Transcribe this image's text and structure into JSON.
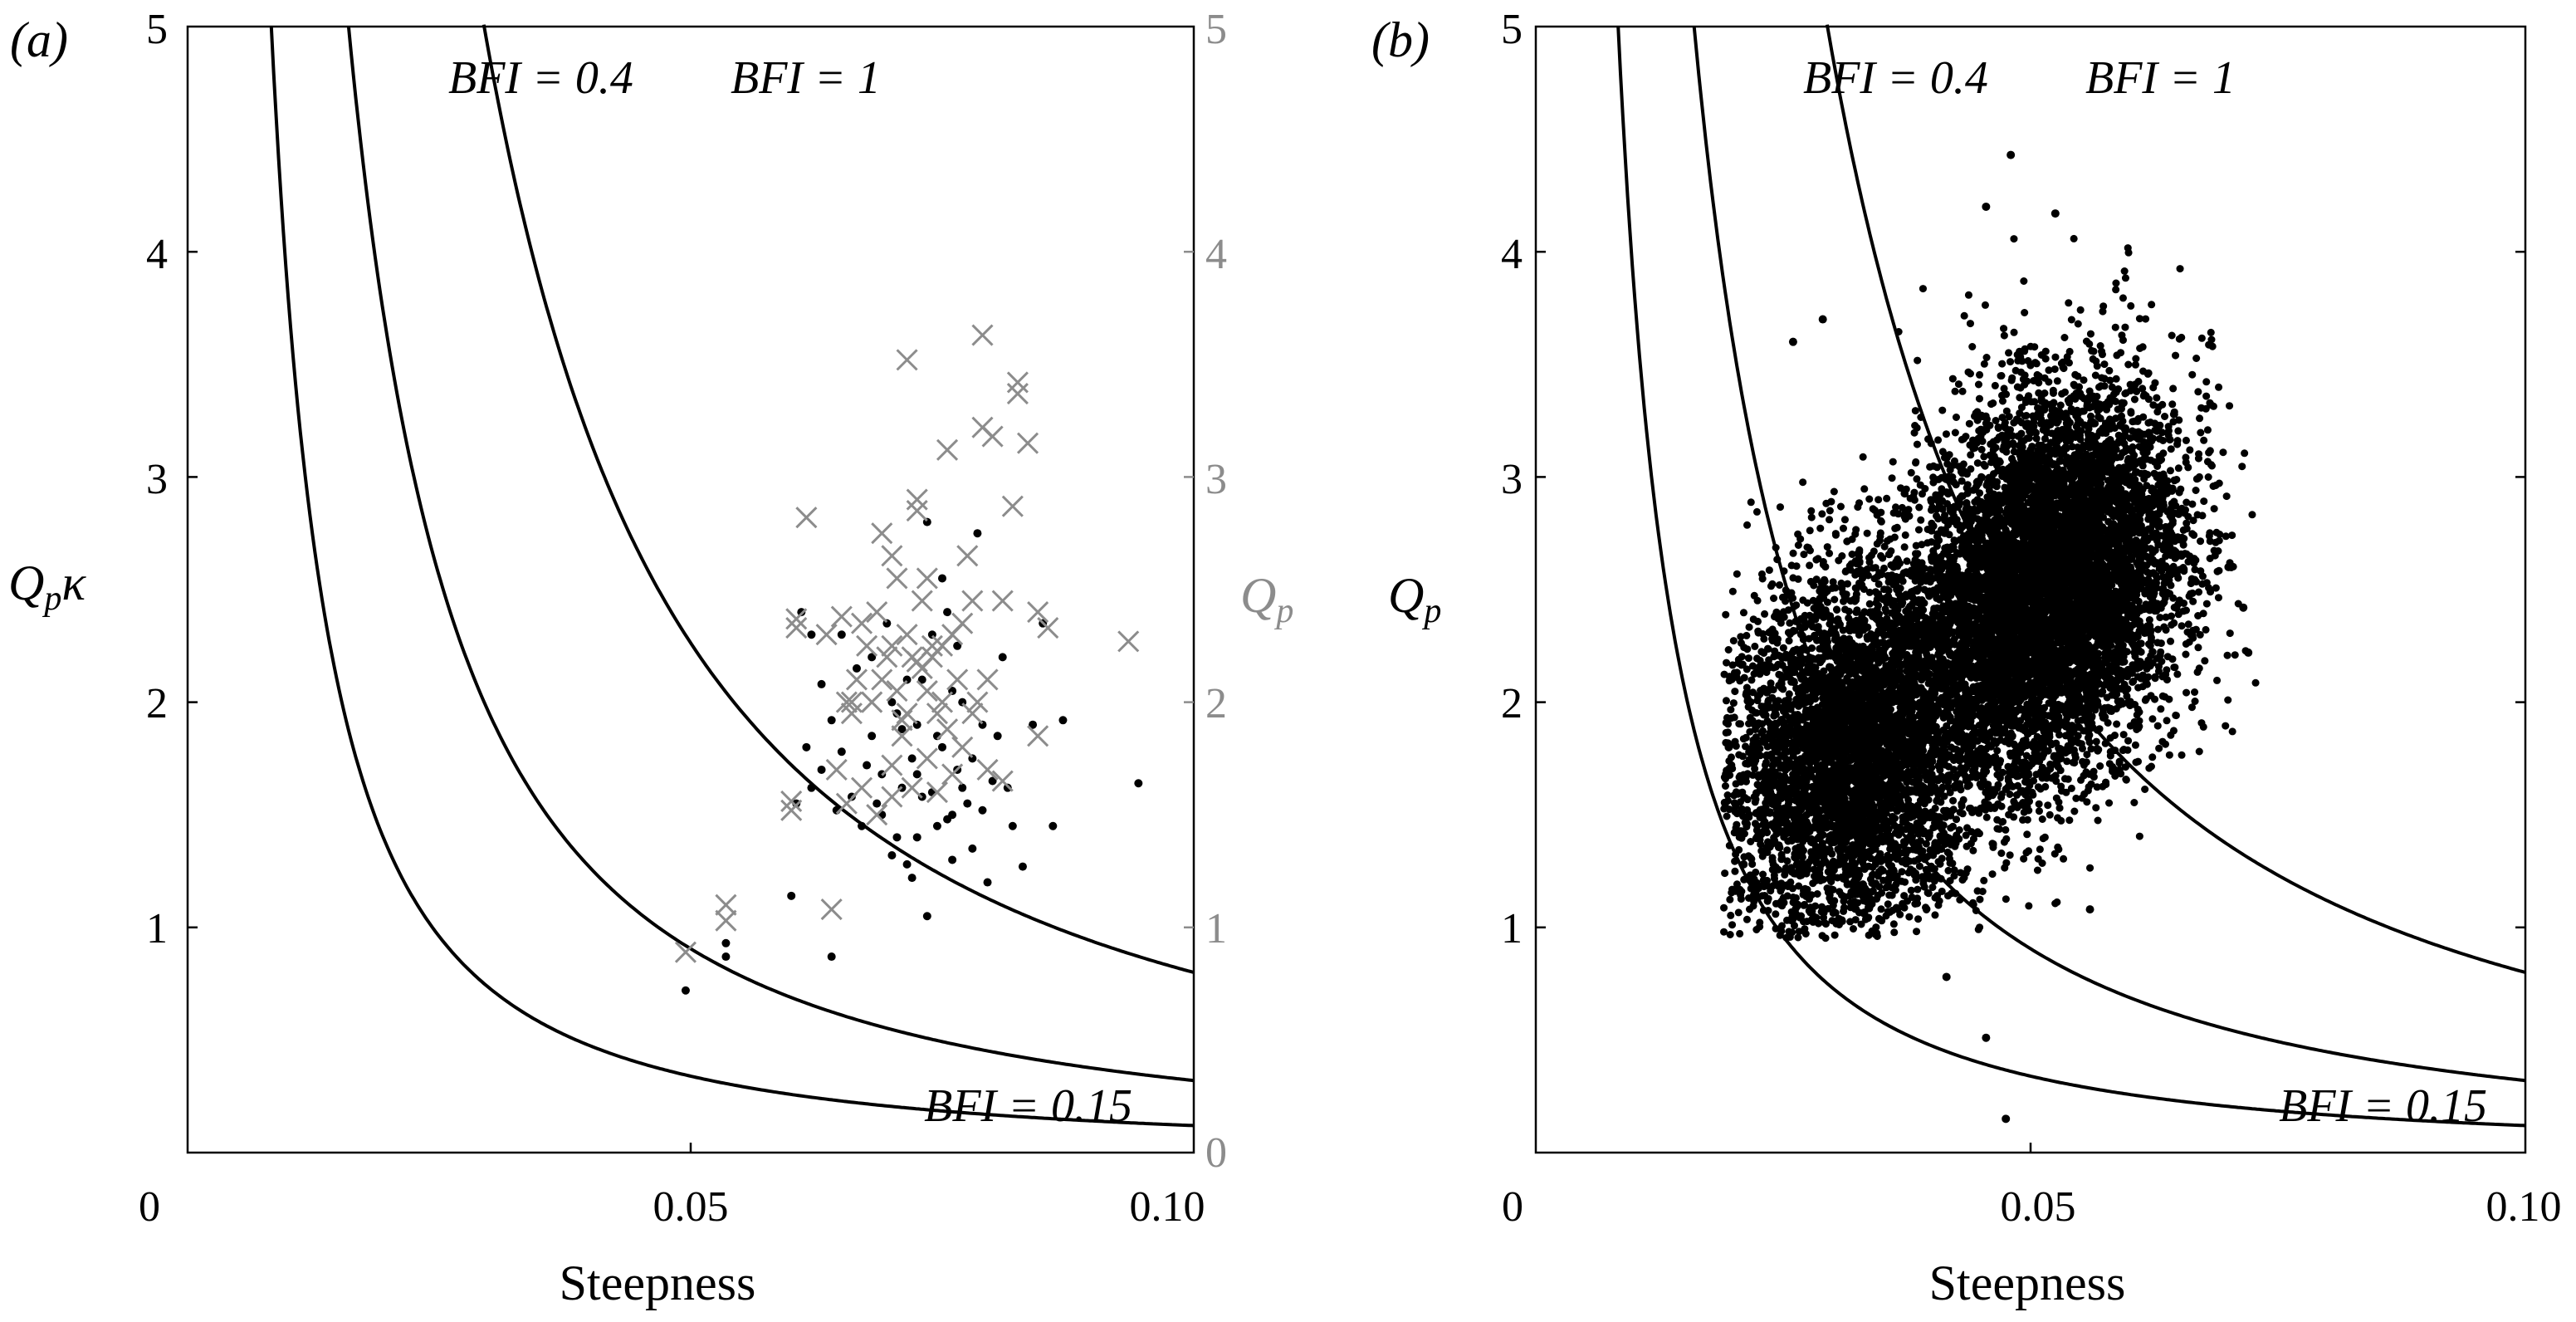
{
  "chart_data": [
    {
      "panel": "(a)",
      "type": "scatter",
      "xlabel": "Steepness",
      "ylabel": "Q_p κ",
      "ylabel_parts": {
        "main": "Q",
        "sub": "p",
        "after": "κ"
      },
      "ylabel_right": "Q_p",
      "ylabel_right_parts": {
        "main": "Q",
        "sub": "p"
      },
      "xlim": [
        0,
        0.1
      ],
      "ylim": [
        0,
        5
      ],
      "x_ticks": [
        "0",
        "0.05",
        "0.10"
      ],
      "y_ticks_left": [
        "1",
        "2",
        "3",
        "4",
        "5"
      ],
      "y_ticks_right": [
        "0",
        "1",
        "2",
        "3",
        "4",
        "5"
      ],
      "right_axis_color": "#8c8c8c",
      "curves": [
        {
          "label": "BFI = 0.15",
          "bfi": 0.15
        },
        {
          "label": "BFI = 0.4",
          "bfi": 0.4
        },
        {
          "label": "BFI = 1",
          "bfi": 1
        }
      ],
      "series": [
        {
          "marker": "dot",
          "color": "#000000",
          "points": [
            [
              0.0495,
              0.72
            ],
            [
              0.0535,
              0.93
            ],
            [
              0.0535,
              0.87
            ],
            [
              0.06,
              1.14
            ],
            [
              0.064,
              0.87
            ],
            [
              0.0605,
              1.55
            ],
            [
              0.062,
              1.62
            ],
            [
              0.061,
              2.4
            ],
            [
              0.062,
              2.3
            ],
            [
              0.063,
              2.08
            ],
            [
              0.064,
              1.92
            ],
            [
              0.065,
              1.78
            ],
            [
              0.066,
              1.58
            ],
            [
              0.067,
              1.45
            ],
            [
              0.0675,
              1.72
            ],
            [
              0.068,
              2.2
            ],
            [
              0.069,
              1.5
            ],
            [
              0.07,
              1.32
            ],
            [
              0.0705,
              1.95
            ],
            [
              0.071,
              1.62
            ],
            [
              0.0715,
              1.28
            ],
            [
              0.072,
              1.22
            ],
            [
              0.0725,
              1.4
            ],
            [
              0.073,
              2.1
            ],
            [
              0.0735,
              1.05
            ],
            [
              0.074,
              1.6
            ],
            [
              0.0745,
              1.85
            ],
            [
              0.075,
              2.55
            ],
            [
              0.0755,
              1.48
            ],
            [
              0.076,
              1.3
            ],
            [
              0.0765,
              1.7
            ],
            [
              0.077,
              2.0
            ],
            [
              0.0775,
              1.55
            ],
            [
              0.078,
              1.35
            ],
            [
              0.0785,
              2.75
            ],
            [
              0.079,
              1.9
            ],
            [
              0.0795,
              1.2
            ],
            [
              0.08,
              1.65
            ],
            [
              0.081,
              2.2
            ],
            [
              0.082,
              1.45
            ],
            [
              0.083,
              1.27
            ],
            [
              0.084,
              1.9
            ],
            [
              0.085,
              2.35
            ],
            [
              0.086,
              1.45
            ],
            [
              0.087,
              1.92
            ],
            [
              0.0945,
              1.64
            ],
            [
              0.063,
              1.7
            ],
            [
              0.065,
              2.3
            ],
            [
              0.068,
              1.85
            ],
            [
              0.07,
              2.0
            ],
            [
              0.072,
              1.75
            ],
            [
              0.074,
              2.3
            ],
            [
              0.076,
              2.05
            ],
            [
              0.078,
              1.75
            ],
            [
              0.069,
              1.68
            ],
            [
              0.071,
              1.88
            ],
            [
              0.073,
              1.58
            ],
            [
              0.075,
              1.8
            ],
            [
              0.077,
              1.62
            ],
            [
              0.079,
              1.52
            ],
            [
              0.0735,
              2.8
            ],
            [
              0.0715,
              2.1
            ],
            [
              0.0665,
              2.15
            ],
            [
              0.0695,
              2.35
            ],
            [
              0.0755,
              2.4
            ],
            [
              0.0805,
              1.85
            ],
            [
              0.0615,
              1.8
            ],
            [
              0.0645,
              1.52
            ],
            [
              0.0725,
              1.9
            ],
            [
              0.0745,
              1.45
            ],
            [
              0.0765,
              2.25
            ],
            [
              0.0815,
              1.62
            ],
            [
              0.0685,
              1.55
            ],
            [
              0.0705,
              1.4
            ],
            [
              0.0725,
              1.68
            ],
            [
              0.076,
              1.5
            ]
          ]
        },
        {
          "marker": "cross",
          "color": "#8c8c8c",
          "points": [
            [
              0.0495,
              0.89
            ],
            [
              0.0535,
              1.1
            ],
            [
              0.0535,
              1.03
            ],
            [
              0.06,
              1.52
            ],
            [
              0.06,
              1.56
            ],
            [
              0.0605,
              2.33
            ],
            [
              0.0605,
              2.37
            ],
            [
              0.0615,
              2.82
            ],
            [
              0.0635,
              2.3
            ],
            [
              0.064,
              1.08
            ],
            [
              0.0645,
              1.7
            ],
            [
              0.0655,
              1.55
            ],
            [
              0.066,
              2.0
            ],
            [
              0.0665,
              2.1
            ],
            [
              0.067,
              2.35
            ],
            [
              0.0675,
              2.25
            ],
            [
              0.068,
              2.0
            ],
            [
              0.0685,
              2.4
            ],
            [
              0.069,
              2.75
            ],
            [
              0.069,
              2.1
            ],
            [
              0.0695,
              2.2
            ],
            [
              0.07,
              2.65
            ],
            [
              0.0705,
              2.55
            ],
            [
              0.071,
              1.85
            ],
            [
              0.0715,
              1.95
            ],
            [
              0.0715,
              3.52
            ],
            [
              0.072,
              2.2
            ],
            [
              0.0725,
              2.9
            ],
            [
              0.0725,
              2.85
            ],
            [
              0.073,
              2.15
            ],
            [
              0.0735,
              2.55
            ],
            [
              0.0735,
              1.75
            ],
            [
              0.074,
              2.25
            ],
            [
              0.0745,
              1.95
            ],
            [
              0.075,
              2.0
            ],
            [
              0.0755,
              3.12
            ],
            [
              0.076,
              2.3
            ],
            [
              0.0765,
              2.1
            ],
            [
              0.077,
              1.8
            ],
            [
              0.0775,
              2.65
            ],
            [
              0.078,
              2.45
            ],
            [
              0.0785,
              2.0
            ],
            [
              0.079,
              3.63
            ],
            [
              0.079,
              3.22
            ],
            [
              0.0795,
              1.7
            ],
            [
              0.08,
              3.18
            ],
            [
              0.081,
              2.45
            ],
            [
              0.081,
              1.65
            ],
            [
              0.082,
              2.87
            ],
            [
              0.0825,
              3.42
            ],
            [
              0.0825,
              3.37
            ],
            [
              0.0835,
              3.15
            ],
            [
              0.0845,
              2.4
            ],
            [
              0.0845,
              1.85
            ],
            [
              0.0855,
              2.33
            ],
            [
              0.0935,
              2.27
            ],
            [
              0.066,
              1.95
            ],
            [
              0.067,
              1.62
            ],
            [
              0.07,
              1.58
            ],
            [
              0.0705,
              2.05
            ],
            [
              0.072,
              1.62
            ],
            [
              0.073,
              2.45
            ],
            [
              0.074,
              2.2
            ],
            [
              0.075,
              2.25
            ],
            [
              0.076,
              1.68
            ],
            [
              0.065,
              2.38
            ],
            [
              0.068,
              2.0
            ],
            [
              0.07,
              2.25
            ],
            [
              0.0735,
              2.05
            ],
            [
              0.077,
              2.35
            ],
            [
              0.0795,
              2.1
            ],
            [
              0.071,
              1.92
            ],
            [
              0.0745,
              1.6
            ],
            [
              0.07,
              1.72
            ],
            [
              0.0755,
              1.88
            ],
            [
              0.0725,
              2.18
            ],
            [
              0.0685,
              1.5
            ],
            [
              0.078,
              1.95
            ],
            [
              0.0655,
              2.0
            ],
            [
              0.0715,
              2.3
            ]
          ]
        }
      ]
    },
    {
      "panel": "(b)",
      "type": "scatter",
      "xlabel": "Steepness",
      "ylabel": "Q_p",
      "ylabel_parts": {
        "main": "Q",
        "sub": "p"
      },
      "xlim": [
        0,
        0.1
      ],
      "ylim": [
        0,
        5
      ],
      "x_ticks": [
        "0",
        "0.05",
        "0.10"
      ],
      "y_ticks_left": [
        "1",
        "2",
        "3",
        "4",
        "5"
      ],
      "curves": [
        {
          "label": "BFI = 0.15",
          "bfi": 0.15
        },
        {
          "label": "BFI = 0.4",
          "bfi": 0.4
        },
        {
          "label": "BFI = 1",
          "bfi": 1
        }
      ],
      "cloud": {
        "description_values": "dense scatter of simulated points",
        "n_points": 14000,
        "x_range": [
          0.019,
          0.073
        ],
        "y_range": [
          0.15,
          4.43
        ],
        "centers": [
          {
            "x": 0.032,
            "y": 1.78,
            "weight": 0.4
          },
          {
            "x": 0.052,
            "y": 2.52,
            "weight": 0.6
          }
        ],
        "outliers": [
          [
            0.0475,
            0.15
          ],
          [
            0.0455,
            0.51
          ],
          [
            0.0415,
            0.78
          ],
          [
            0.048,
            4.43
          ],
          [
            0.0455,
            4.2
          ],
          [
            0.0525,
            4.17
          ],
          [
            0.029,
            3.7
          ],
          [
            0.07,
            2.6
          ],
          [
            0.0715,
            2.42
          ],
          [
            0.072,
            2.22
          ],
          [
            0.0195,
            1.8
          ],
          [
            0.021,
            1.28
          ],
          [
            0.026,
            3.6
          ],
          [
            0.056,
            1.08
          ]
        ]
      }
    }
  ]
}
